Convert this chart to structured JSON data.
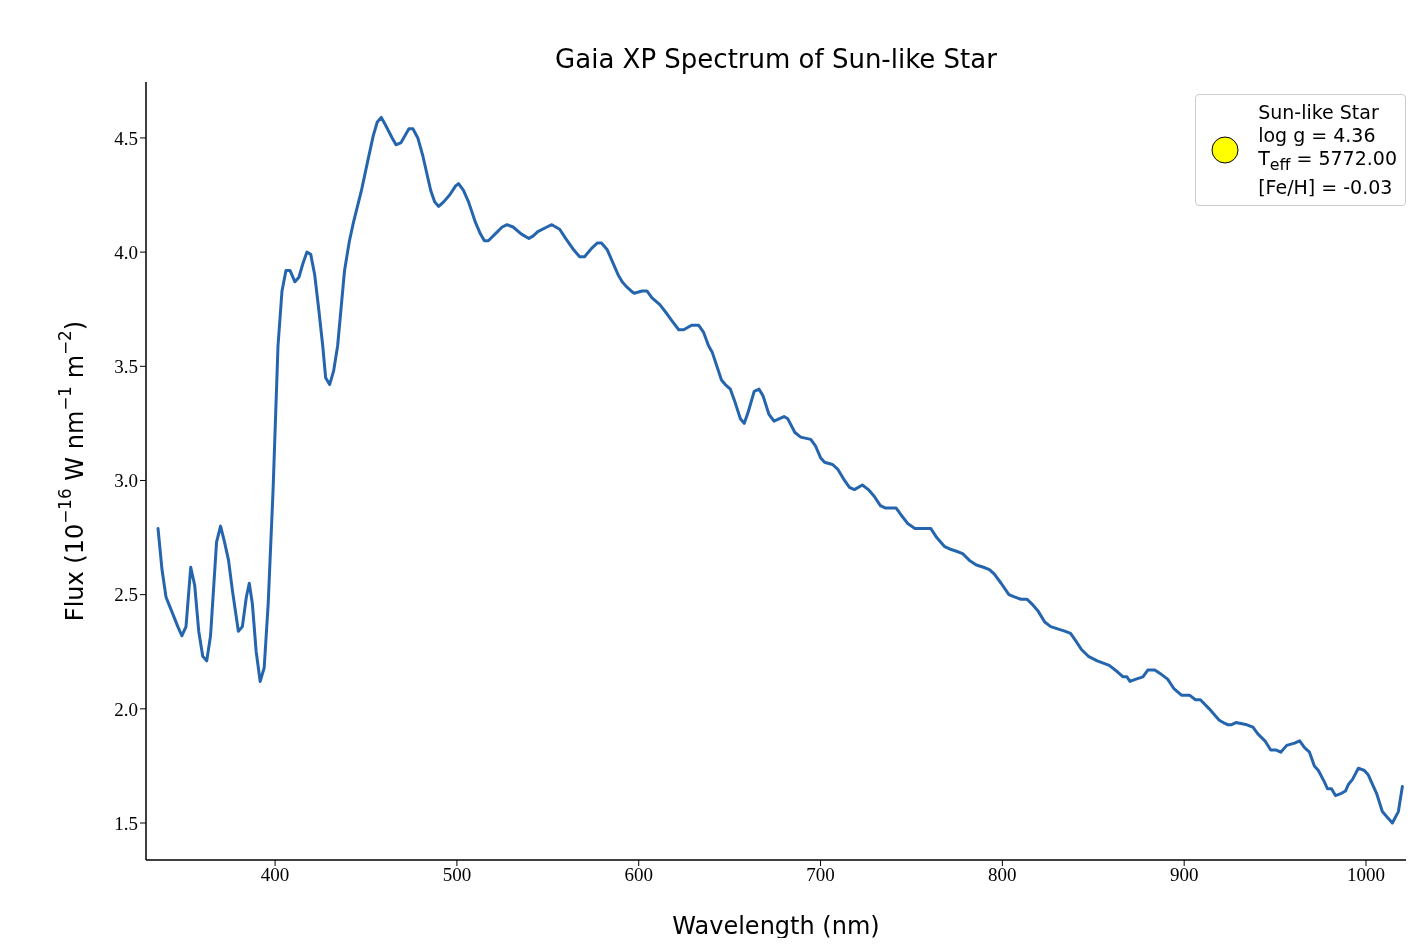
{
  "chart_data": {
    "type": "line",
    "title": "Gaia XP Spectrum of Sun-like Star",
    "xlabel": "Wavelength (nm)",
    "ylabel": "Flux (10$^{−16}$ W nm$^{−1}$ m$^{−2}$)",
    "xlim": [
      329,
      1022
    ],
    "ylim": [
      1.338,
      4.745
    ],
    "xticks": [
      400,
      500,
      600,
      700,
      800,
      900,
      1000
    ],
    "yticks": [
      1.5,
      {
        "value": 2,
        "label": "2.0"
      },
      2.5,
      {
        "value": 3,
        "label": "3.0"
      },
      3.5,
      {
        "value": 4,
        "label": "4.0"
      },
      4.5
    ],
    "annotations": [
      "Sun-like Star",
      "log g = 4.36",
      "T$_{eff}$ = 5772.00",
      "[Fe/H] = -0.03"
    ],
    "x": [
      335.6,
      337.8,
      340,
      342,
      343,
      346.5,
      348.7,
      351,
      353.6,
      355.8,
      358,
      360.2,
      362.4,
      364.5,
      367.8,
      370,
      372.2,
      374.4,
      376.5,
      379.8,
      382,
      384.2,
      385.8,
      387.5,
      389.6,
      391.8,
      394,
      396.2,
      398.9,
      401.6,
      403.8,
      406,
      408.2,
      410.9,
      413.1,
      415.3,
      417.5,
      419.6,
      421.8,
      424,
      426.2,
      427.8,
      430,
      432.2,
      434.4,
      438.2,
      440.9,
      443.1,
      447.5,
      450.7,
      454,
      456.2,
      458.4,
      460.5,
      464.4,
      466.5,
      469.3,
      473.6,
      475.8,
      478.5,
      481.3,
      485.6,
      487.8,
      490,
      492.7,
      496,
      499.3,
      500.9,
      503.6,
      506.4,
      510.2,
      512.9,
      515.1,
      517.3,
      521.1,
      524.9,
      527.6,
      530.9,
      535.3,
      539.6,
      541.8,
      544.5,
      549.5,
      552.2,
      556.5,
      559.8,
      564.2,
      567.5,
      570.2,
      574.5,
      577.3,
      579.5,
      582.7,
      586,
      588.7,
      590.9,
      593.1,
      595.8,
      597.5,
      601.9,
      604.5,
      607.3,
      611.6,
      615.5,
      618.2,
      622,
      624.7,
      629.1,
      632.9,
      635.6,
      638.4,
      640.5,
      645.5,
      647.6,
      650.4,
      653.1,
      655.9,
      658,
      660.2,
      663.5,
      666.2,
      668.4,
      671.6,
      674.4,
      679.9,
      682,
      685.9,
      689.1,
      694.6,
      697.3,
      700,
      702.2,
      706.6,
      709.4,
      713.2,
      715.9,
      718.6,
      723,
      726.3,
      729.6,
      732.9,
      735.5,
      741.5,
      744.2,
      748.1,
      751.9,
      756.7,
      760.6,
      763.9,
      768.3,
      771,
      774.8,
      778.1,
      781.9,
      785.7,
      789.6,
      792.9,
      795.6,
      799.3,
      803.6,
      806.6,
      810.2,
      813.5,
      816.2,
      819.5,
      823.3,
      826.6,
      830.4,
      834.3,
      837.5,
      840.2,
      843.5,
      847.3,
      852.2,
      855.5,
      858.8,
      863.6,
      866.4,
      868.5,
      870.2,
      873.5,
      877.3,
      880,
      883.8,
      887.6,
      890.9,
      894.2,
      898.5,
      902.9,
      906.2,
      908.9,
      913.8,
      917.1,
      919.3,
      921.5,
      924.2,
      925.8,
      928.5,
      934.5,
      937.8,
      940.5,
      944.4,
      947.6,
      950.4,
      953.1,
      956.4,
      960.7,
      963.5,
      966.2,
      968.9,
      971.6,
      973.8,
      977.1,
      978.8,
      981,
      983.2,
      986.5,
      988.7,
      990.4,
      992.5,
      995.8,
      999.1,
      1001.3,
      1003.5,
      1005.8,
      1009,
      1011.2,
      1014.5,
      1017.8,
      1020
    ],
    "series": [
      {
        "color": "#2565ae",
        "values": [
          2.79,
          2.61,
          2.49,
          2.45,
          2.43,
          2.36,
          2.32,
          2.36,
          2.62,
          2.54,
          2.34,
          2.23,
          2.21,
          2.32,
          2.73,
          2.8,
          2.73,
          2.65,
          2.52,
          2.34,
          2.36,
          2.49,
          2.55,
          2.46,
          2.25,
          2.12,
          2.18,
          2.46,
          2.96,
          3.59,
          3.83,
          3.92,
          3.92,
          3.87,
          3.89,
          3.95,
          4.0,
          3.99,
          3.9,
          3.75,
          3.59,
          3.45,
          3.42,
          3.48,
          3.59,
          3.92,
          4.05,
          4.13,
          4.27,
          4.39,
          4.51,
          4.57,
          4.59,
          4.56,
          4.5,
          4.47,
          4.48,
          4.54,
          4.54,
          4.5,
          4.42,
          4.27,
          4.22,
          4.2,
          4.22,
          4.25,
          4.29,
          4.3,
          4.27,
          4.22,
          4.13,
          4.08,
          4.05,
          4.05,
          4.08,
          4.11,
          4.12,
          4.11,
          4.08,
          4.06,
          4.07,
          4.09,
          4.11,
          4.12,
          4.1,
          4.06,
          4.01,
          3.98,
          3.98,
          4.02,
          4.04,
          4.04,
          4.01,
          3.95,
          3.9,
          3.87,
          3.85,
          3.83,
          3.82,
          3.83,
          3.83,
          3.8,
          3.77,
          3.73,
          3.7,
          3.66,
          3.66,
          3.68,
          3.68,
          3.65,
          3.59,
          3.56,
          3.44,
          3.42,
          3.4,
          3.34,
          3.27,
          3.25,
          3.3,
          3.39,
          3.4,
          3.37,
          3.29,
          3.26,
          3.28,
          3.27,
          3.21,
          3.19,
          3.18,
          3.15,
          3.1,
          3.08,
          3.07,
          3.05,
          3.0,
          2.97,
          2.96,
          2.98,
          2.96,
          2.93,
          2.89,
          2.88,
          2.88,
          2.85,
          2.81,
          2.79,
          2.79,
          2.79,
          2.75,
          2.71,
          2.7,
          2.69,
          2.68,
          2.65,
          2.63,
          2.62,
          2.61,
          2.59,
          2.55,
          2.5,
          2.49,
          2.48,
          2.48,
          2.46,
          2.43,
          2.38,
          2.36,
          2.35,
          2.34,
          2.33,
          2.3,
          2.26,
          2.23,
          2.21,
          2.2,
          2.19,
          2.16,
          2.14,
          2.14,
          2.12,
          2.13,
          2.14,
          2.17,
          2.17,
          2.15,
          2.13,
          2.09,
          2.06,
          2.06,
          2.04,
          2.04,
          2.0,
          1.97,
          1.95,
          1.94,
          1.93,
          1.93,
          1.94,
          1.93,
          1.92,
          1.89,
          1.86,
          1.82,
          1.82,
          1.81,
          1.84,
          1.85,
          1.86,
          1.83,
          1.81,
          1.75,
          1.73,
          1.68,
          1.65,
          1.65,
          1.62,
          1.63,
          1.64,
          1.67,
          1.69,
          1.74,
          1.73,
          1.71,
          1.67,
          1.63,
          1.55,
          1.53,
          1.5,
          1.55,
          1.66
        ]
      }
    ]
  }
}
